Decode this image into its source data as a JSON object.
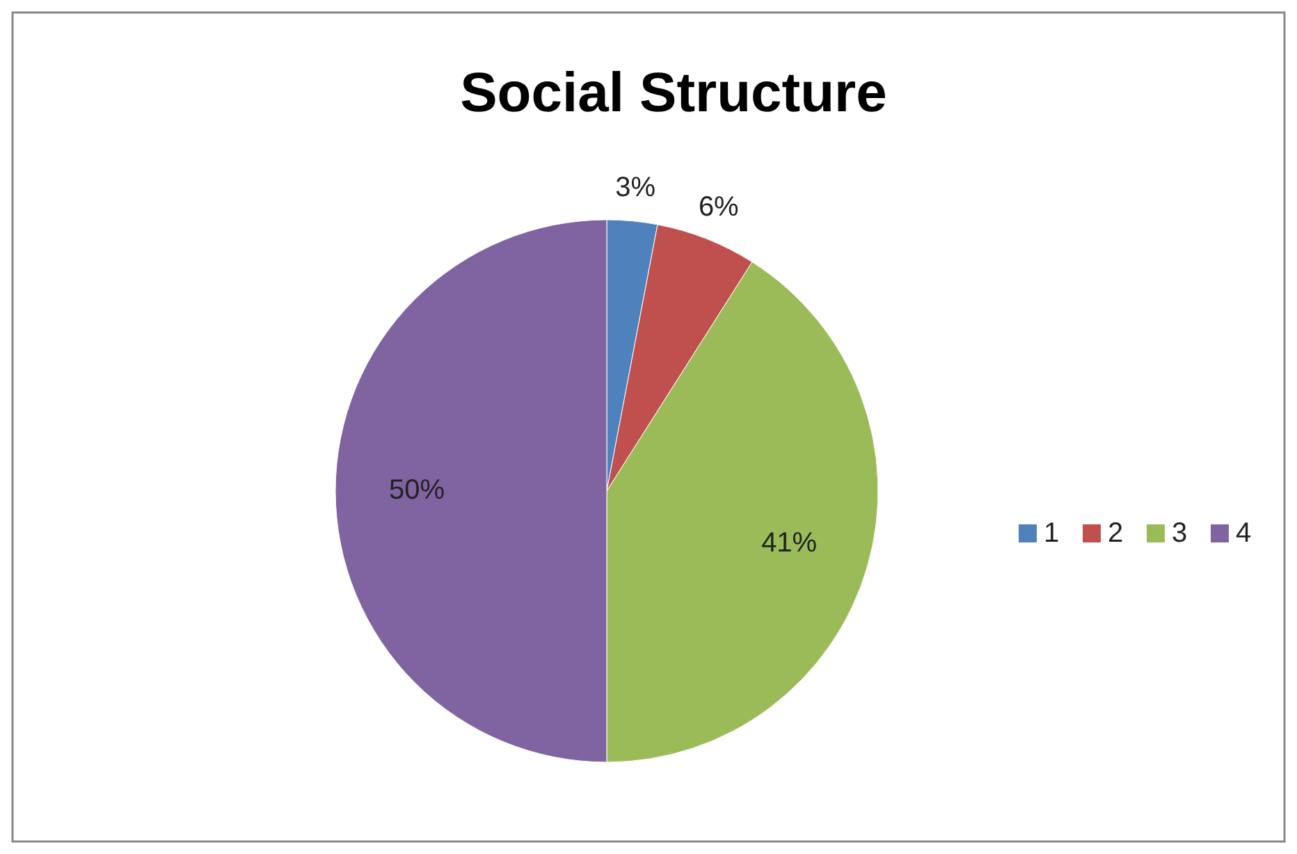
{
  "chart_data": {
    "type": "pie",
    "title": "Social Structure",
    "categories": [
      "1",
      "2",
      "3",
      "4"
    ],
    "values": [
      3,
      6,
      41,
      50
    ],
    "colors": [
      "#4f81bd",
      "#c0504d",
      "#9bbb59",
      "#8064a2"
    ],
    "value_labels": [
      "3%",
      "6%",
      "41%",
      "50%"
    ],
    "legend": "right"
  }
}
